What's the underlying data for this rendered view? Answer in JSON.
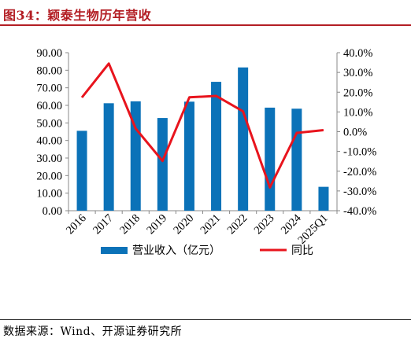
{
  "header": {
    "title": "图34：颖泰生物历年营收"
  },
  "footer": {
    "source": "数据来源：Wind、开源证券研究所"
  },
  "colors": {
    "bar": "#0b72b8",
    "line": "#e8141d",
    "title": "#b31e24"
  },
  "chart_data": {
    "type": "bar",
    "categories": [
      "2016",
      "2017",
      "2018",
      "2019",
      "2020",
      "2021",
      "2022",
      "2023",
      "2024",
      "2025Q1"
    ],
    "series": [
      {
        "name": "营业收入（亿元）",
        "type": "bar",
        "axis": "left",
        "values": [
          45.5,
          61.2,
          62.3,
          52.8,
          62.1,
          73.4,
          81.6,
          58.7,
          58.1,
          13.6
        ]
      },
      {
        "name": "同比",
        "type": "line",
        "axis": "right",
        "unit": "%",
        "values": [
          17.3,
          34.5,
          1.6,
          -14.8,
          17.4,
          18.1,
          10.3,
          -28.2,
          -0.6,
          0.8
        ]
      }
    ],
    "y_left": {
      "ylim": [
        0,
        90
      ],
      "ticks": [
        "0.00",
        "10.00",
        "20.00",
        "30.00",
        "40.00",
        "50.00",
        "60.00",
        "70.00",
        "80.00",
        "90.00"
      ]
    },
    "y_right": {
      "ylim": [
        -40,
        40
      ],
      "ticks": [
        "-40.0%",
        "-30.0%",
        "-20.0%",
        "-10.0%",
        "0.0%",
        "10.0%",
        "20.0%",
        "30.0%",
        "40.0%"
      ]
    },
    "grid": false,
    "legend_position": "bottom"
  }
}
